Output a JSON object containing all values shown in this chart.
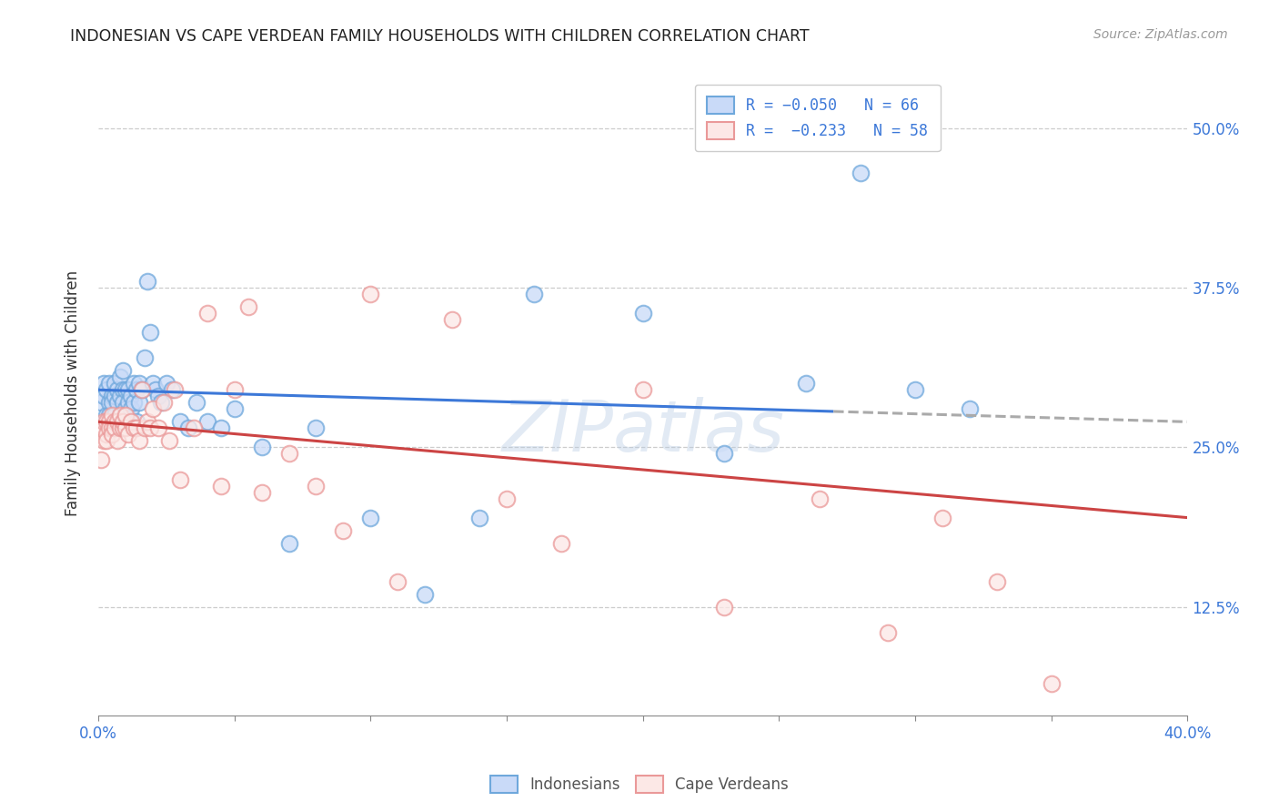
{
  "title": "INDONESIAN VS CAPE VERDEAN FAMILY HOUSEHOLDS WITH CHILDREN CORRELATION CHART",
  "source": "Source: ZipAtlas.com",
  "ylabel": "Family Households with Children",
  "ytick_labels": [
    "12.5%",
    "25.0%",
    "37.5%",
    "50.0%"
  ],
  "ytick_values": [
    0.125,
    0.25,
    0.375,
    0.5
  ],
  "xmin": 0.0,
  "xmax": 0.4,
  "ymin": 0.04,
  "ymax": 0.545,
  "legend_r1": "R = −0.050",
  "legend_n1": "N = 66",
  "legend_r2": "R = −0.233",
  "legend_n2": "N = 58",
  "blue_fill": "#c9daf8",
  "blue_edge": "#6fa8dc",
  "pink_fill": "#fce8e6",
  "pink_edge": "#ea9999",
  "line_blue_solid": "#3c78d8",
  "line_blue_dash": "#aaaaaa",
  "line_pink": "#cc4444",
  "watermark": "ZIPatlas",
  "indonesian_x": [
    0.001,
    0.002,
    0.002,
    0.003,
    0.003,
    0.003,
    0.004,
    0.004,
    0.004,
    0.005,
    0.005,
    0.005,
    0.006,
    0.006,
    0.006,
    0.007,
    0.007,
    0.007,
    0.008,
    0.008,
    0.008,
    0.009,
    0.009,
    0.009,
    0.01,
    0.01,
    0.01,
    0.011,
    0.011,
    0.012,
    0.012,
    0.013,
    0.013,
    0.014,
    0.014,
    0.015,
    0.015,
    0.016,
    0.017,
    0.018,
    0.019,
    0.02,
    0.021,
    0.022,
    0.023,
    0.025,
    0.027,
    0.03,
    0.033,
    0.036,
    0.04,
    0.045,
    0.05,
    0.06,
    0.07,
    0.08,
    0.1,
    0.12,
    0.14,
    0.16,
    0.2,
    0.23,
    0.26,
    0.28,
    0.3,
    0.32
  ],
  "indonesian_y": [
    0.285,
    0.29,
    0.3,
    0.275,
    0.295,
    0.27,
    0.285,
    0.3,
    0.275,
    0.29,
    0.285,
    0.27,
    0.3,
    0.29,
    0.275,
    0.295,
    0.285,
    0.27,
    0.305,
    0.29,
    0.275,
    0.295,
    0.31,
    0.285,
    0.295,
    0.28,
    0.275,
    0.295,
    0.285,
    0.29,
    0.28,
    0.3,
    0.285,
    0.295,
    0.27,
    0.3,
    0.285,
    0.295,
    0.32,
    0.38,
    0.34,
    0.3,
    0.295,
    0.29,
    0.285,
    0.3,
    0.295,
    0.27,
    0.265,
    0.285,
    0.27,
    0.265,
    0.28,
    0.25,
    0.175,
    0.265,
    0.195,
    0.135,
    0.195,
    0.37,
    0.355,
    0.245,
    0.3,
    0.465,
    0.295,
    0.28
  ],
  "capeverdean_x": [
    0.001,
    0.001,
    0.002,
    0.002,
    0.003,
    0.003,
    0.003,
    0.004,
    0.004,
    0.005,
    0.005,
    0.005,
    0.006,
    0.006,
    0.007,
    0.007,
    0.008,
    0.008,
    0.009,
    0.009,
    0.01,
    0.01,
    0.011,
    0.012,
    0.013,
    0.014,
    0.015,
    0.016,
    0.017,
    0.018,
    0.019,
    0.02,
    0.022,
    0.024,
    0.026,
    0.028,
    0.03,
    0.035,
    0.04,
    0.045,
    0.05,
    0.055,
    0.06,
    0.07,
    0.08,
    0.09,
    0.1,
    0.11,
    0.13,
    0.15,
    0.17,
    0.2,
    0.23,
    0.265,
    0.29,
    0.31,
    0.33,
    0.35
  ],
  "capeverdean_y": [
    0.265,
    0.24,
    0.27,
    0.255,
    0.27,
    0.26,
    0.255,
    0.27,
    0.265,
    0.275,
    0.265,
    0.26,
    0.27,
    0.265,
    0.27,
    0.255,
    0.265,
    0.275,
    0.265,
    0.27,
    0.265,
    0.275,
    0.26,
    0.27,
    0.265,
    0.265,
    0.255,
    0.295,
    0.265,
    0.27,
    0.265,
    0.28,
    0.265,
    0.285,
    0.255,
    0.295,
    0.225,
    0.265,
    0.355,
    0.22,
    0.295,
    0.36,
    0.215,
    0.245,
    0.22,
    0.185,
    0.37,
    0.145,
    0.35,
    0.21,
    0.175,
    0.295,
    0.125,
    0.21,
    0.105,
    0.195,
    0.145,
    0.065
  ]
}
